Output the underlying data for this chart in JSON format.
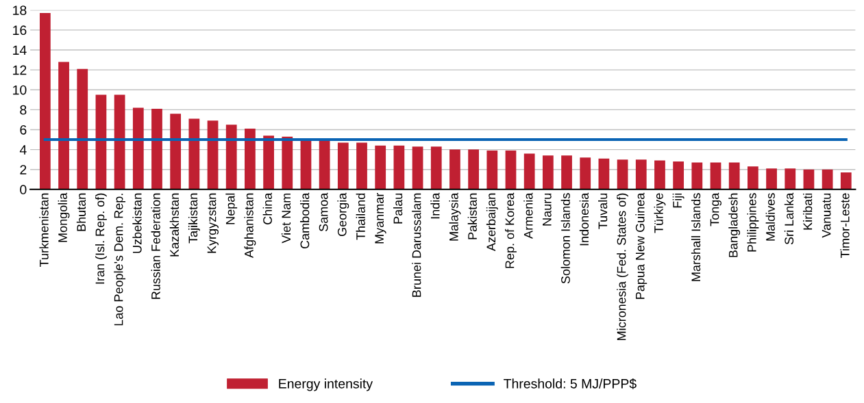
{
  "chart_data": {
    "type": "bar",
    "categories": [
      "Turkmenistan",
      "Mongolia",
      "Bhutan",
      "Iran (Isl. Rep. of)",
      "Lao People's Dem. Rep.",
      "Uzbekistan",
      "Russian Federation",
      "Kazakhstan",
      "Tajikistan",
      "Kyrgyzstan",
      "Nepal",
      "Afghanistan",
      "China",
      "Viet Nam",
      "Cambodia",
      "Samoa",
      "Georgia",
      "Thailand",
      "Myanmar",
      "Palau",
      "Brunei Darussalam",
      "India",
      "Malaysia",
      "Pakistan",
      "Azerbaijan",
      "Rep. of Korea",
      "Armenia",
      "Nauru",
      "Solomon Islands",
      "Indonesia",
      "Tuvalu",
      "Micronesia (Fed. States of)",
      "Papua New Guinea",
      "Türkiye",
      "Fiji",
      "Marshall Islands",
      "Tonga",
      "Bangladesh",
      "Philippines",
      "Maldives",
      "Sri Lanka",
      "Kiribati",
      "Vanuatu",
      "Timor-Leste"
    ],
    "series": [
      {
        "name": "Energy intensity",
        "color": "#c02032",
        "values": [
          17.7,
          12.8,
          12.1,
          9.5,
          9.5,
          8.2,
          8.1,
          7.6,
          7.1,
          6.9,
          6.5,
          6.1,
          5.4,
          5.3,
          5.0,
          5.0,
          4.7,
          4.7,
          4.4,
          4.4,
          4.3,
          4.3,
          4.0,
          4.0,
          3.9,
          3.9,
          3.6,
          3.4,
          3.4,
          3.2,
          3.1,
          3.0,
          3.0,
          2.9,
          2.8,
          2.7,
          2.7,
          2.7,
          2.3,
          2.1,
          2.1,
          2.0,
          2.0,
          1.7
        ]
      }
    ],
    "ref_lines": [
      {
        "axis": "y",
        "value": 5,
        "label": "Threshold: 5 MJ/PPP$",
        "color": "#0a64b4",
        "line_style": "solid"
      }
    ],
    "ylim": [
      0,
      18
    ],
    "yticks": [
      0,
      2,
      4,
      6,
      8,
      10,
      12,
      14,
      16,
      18
    ],
    "grid": "y",
    "legend": "bottom"
  }
}
